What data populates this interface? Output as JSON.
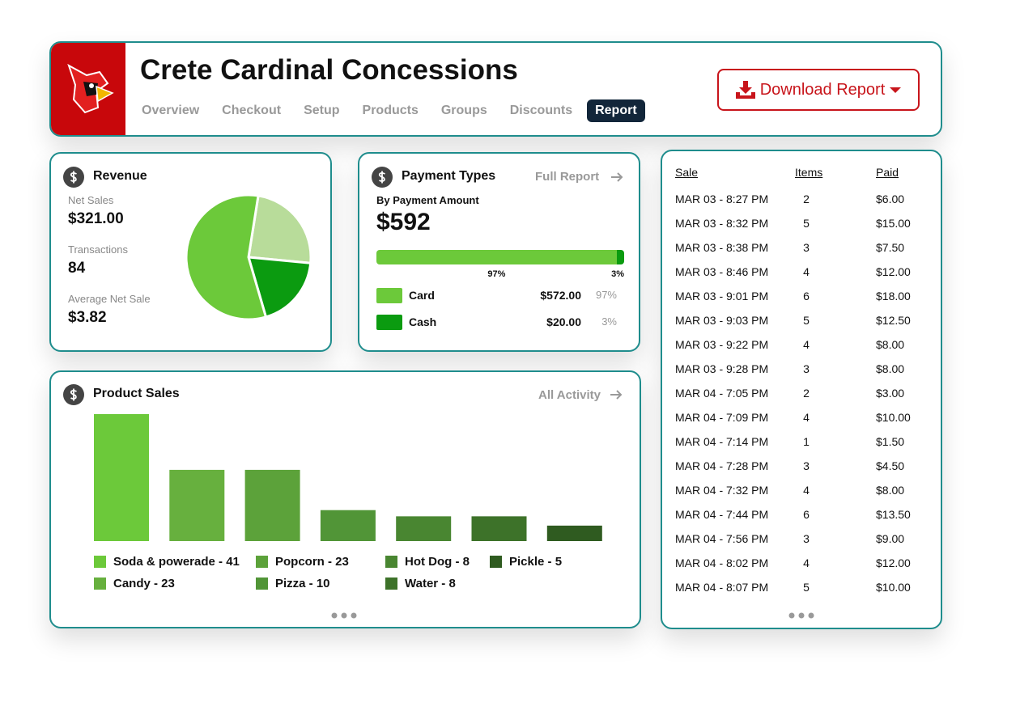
{
  "header": {
    "title": "Crete Cardinal Concessions",
    "nav": [
      {
        "label": "Overview",
        "active": false
      },
      {
        "label": "Checkout",
        "active": false
      },
      {
        "label": "Setup",
        "active": false
      },
      {
        "label": "Products",
        "active": false
      },
      {
        "label": "Groups",
        "active": false
      },
      {
        "label": "Discounts",
        "active": false
      },
      {
        "label": "Report",
        "active": true
      }
    ],
    "download_button": "Download Report"
  },
  "revenue": {
    "title": "Revenue",
    "stats": [
      {
        "label": "Net Sales",
        "value": "$321.00"
      },
      {
        "label": "Transactions",
        "value": "84"
      },
      {
        "label": "Average Net Sale",
        "value": "$3.82"
      }
    ],
    "pie": {
      "slices": [
        {
          "value": 24,
          "color": "#b8dc9a"
        },
        {
          "value": 19,
          "color": "#0b9b10"
        },
        {
          "value": 57,
          "color": "#6cc93a"
        }
      ]
    }
  },
  "payment_types": {
    "title": "Payment Types",
    "link": "Full Report",
    "subtitle": "By Payment Amount",
    "total": "$592",
    "methods": [
      {
        "name": "Card",
        "color": "#6cc93a",
        "amount": "$572.00",
        "percent": 97,
        "percent_label": "97%"
      },
      {
        "name": "Cash",
        "color": "#0b9b10",
        "amount": "$20.00",
        "percent": 3,
        "percent_label": "3%"
      }
    ]
  },
  "product_sales": {
    "title": "Product Sales",
    "link": "All Activity",
    "items": [
      {
        "label": "Soda & powerade - 41",
        "value": 41,
        "color": "#6cc93a"
      },
      {
        "label": "Candy - 23",
        "value": 23,
        "color": "#67b03e"
      },
      {
        "label": "Popcorn - 23",
        "value": 23,
        "color": "#5ca23a"
      },
      {
        "label": "Pizza - 10",
        "value": 10,
        "color": "#519537"
      },
      {
        "label": "Hot Dog - 8",
        "value": 8,
        "color": "#498631"
      },
      {
        "label": "Water - 8",
        "value": 8,
        "color": "#3d7229"
      },
      {
        "label": "Pickle - 5",
        "value": 5,
        "color": "#2f5b20"
      }
    ]
  },
  "sales_table": {
    "columns": [
      "Sale",
      "Items",
      "Paid"
    ],
    "rows": [
      [
        "MAR 03 - 8:27 PM",
        2,
        "$6.00"
      ],
      [
        "MAR 03 - 8:32 PM",
        5,
        "$15.00"
      ],
      [
        "MAR 03 - 8:38 PM",
        3,
        "$7.50"
      ],
      [
        "MAR 03 - 8:46 PM",
        4,
        "$12.00"
      ],
      [
        "MAR 03 - 9:01 PM",
        6,
        "$18.00"
      ],
      [
        "MAR 03 - 9:03 PM",
        5,
        "$12.50"
      ],
      [
        "MAR 03 - 9:22 PM",
        4,
        "$8.00"
      ],
      [
        "MAR 03 - 9:28 PM",
        3,
        "$8.00"
      ],
      [
        "MAR 04 - 7:05 PM",
        2,
        "$3.00"
      ],
      [
        "MAR 04 - 7:09 PM",
        4,
        "$10.00"
      ],
      [
        "MAR 04 - 7:14 PM",
        1,
        "$1.50"
      ],
      [
        "MAR 04 - 7:28 PM",
        3,
        "$4.50"
      ],
      [
        "MAR 04 - 7:32 PM",
        4,
        "$8.00"
      ],
      [
        "MAR 04 - 7:44 PM",
        6,
        "$13.50"
      ],
      [
        "MAR 04 - 7:56 PM",
        3,
        "$9.00"
      ],
      [
        "MAR 04 - 8:02 PM",
        4,
        "$12.00"
      ],
      [
        "MAR 04 - 8:07 PM",
        5,
        "$10.00"
      ]
    ]
  }
}
